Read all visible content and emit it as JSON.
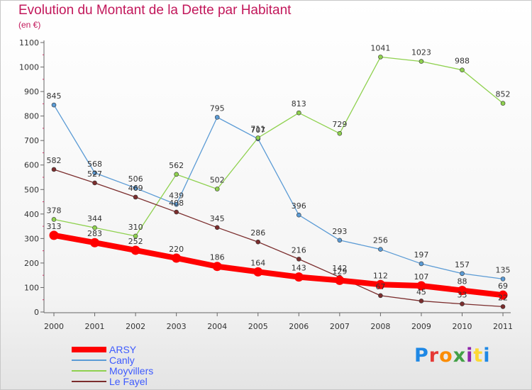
{
  "header": {
    "title": "Evolution du Montant de la Dette par Habitant",
    "subtitle": "(en €)"
  },
  "logo": {
    "letters": [
      "P",
      "r",
      "o",
      "x",
      "i",
      "t",
      "i"
    ],
    "colors": [
      "#1e88e5",
      "#e53935",
      "#fb8c00",
      "#43a047",
      "#8e24aa",
      "#fdd835",
      "#1e88e5"
    ]
  },
  "chart_data": {
    "type": "line",
    "title": "Evolution du Montant de la Dette par Habitant",
    "subtitle": "(en €)",
    "xlabel": "",
    "ylabel": "",
    "x": [
      "2000",
      "2001",
      "2002",
      "2003",
      "2004",
      "2005",
      "2006",
      "2007",
      "2008",
      "2009",
      "2010",
      "2011"
    ],
    "ylim": [
      0,
      1100
    ],
    "yticks": [
      0,
      100,
      200,
      300,
      400,
      500,
      600,
      700,
      800,
      900,
      1000,
      1100
    ],
    "grid": false,
    "legend_position": "bottom-left",
    "series": [
      {
        "name": "ARSY",
        "color": "#ff0000",
        "emphasis": true,
        "values": [
          313,
          283,
          252,
          220,
          186,
          164,
          143,
          129,
          112,
          107,
          88,
          69
        ]
      },
      {
        "name": "Canly",
        "color": "#5b9bd5",
        "emphasis": false,
        "values": [
          845,
          568,
          506,
          439,
          795,
          707,
          396,
          293,
          256,
          197,
          157,
          135
        ]
      },
      {
        "name": "Moyvillers",
        "color": "#8fd14f",
        "emphasis": false,
        "values": [
          378,
          344,
          310,
          562,
          502,
          711,
          813,
          729,
          1041,
          1023,
          988,
          852
        ]
      },
      {
        "name": "Le Fayel",
        "color": "#7b2d2d",
        "emphasis": false,
        "values": [
          582,
          527,
          469,
          408,
          345,
          286,
          216,
          142,
          67,
          45,
          33,
          22
        ]
      }
    ]
  }
}
